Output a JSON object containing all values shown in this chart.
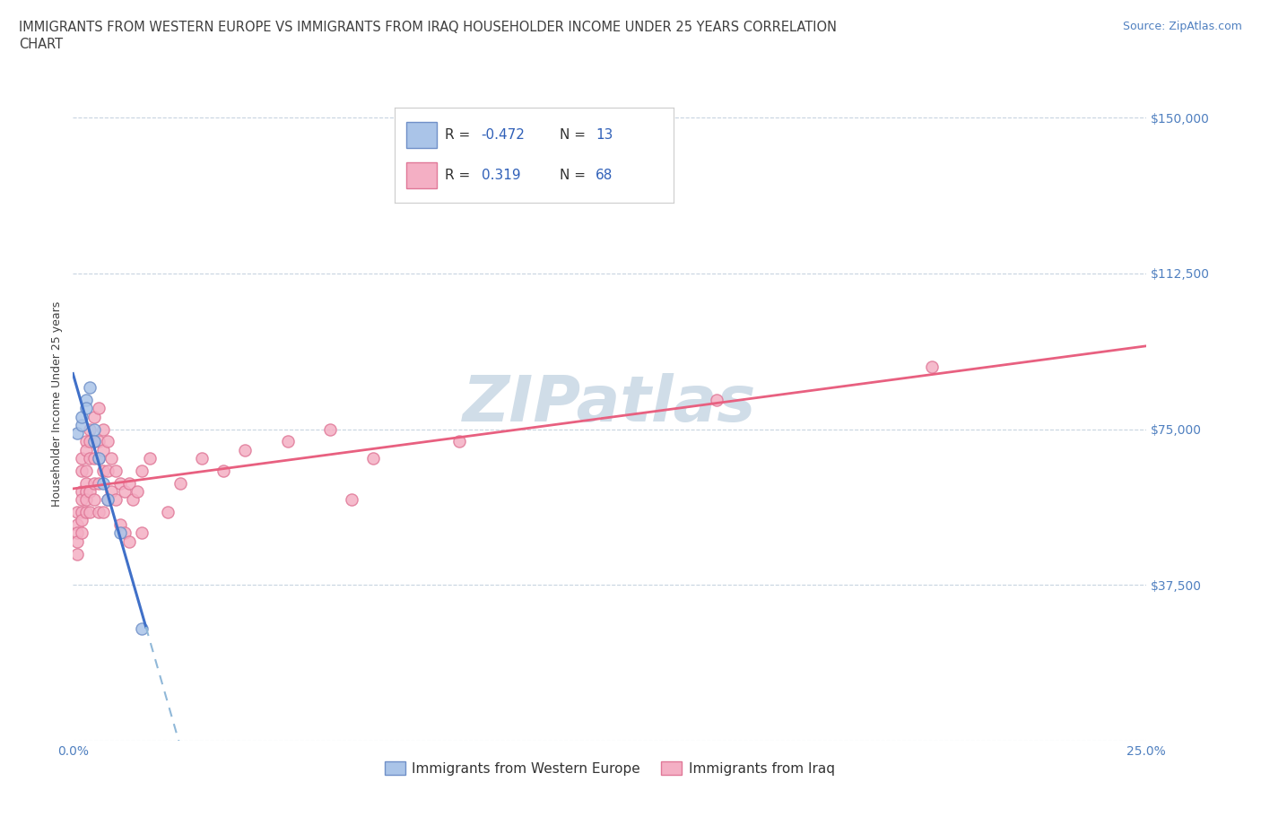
{
  "title_line1": "IMMIGRANTS FROM WESTERN EUROPE VS IMMIGRANTS FROM IRAQ HOUSEHOLDER INCOME UNDER 25 YEARS CORRELATION",
  "title_line2": "CHART",
  "source_text": "Source: ZipAtlas.com",
  "ylabel": "Householder Income Under 25 years",
  "watermark": "ZIPatlas",
  "xlim": [
    0.0,
    0.25
  ],
  "ylim": [
    0,
    162000
  ],
  "yticks": [
    0,
    37500,
    75000,
    112500,
    150000
  ],
  "ytick_labels": [
    "",
    "$37,500",
    "$75,000",
    "$112,500",
    "$150,000"
  ],
  "xticks": [
    0.0,
    0.05,
    0.1,
    0.15,
    0.2,
    0.25
  ],
  "xtick_labels": [
    "0.0%",
    "",
    "",
    "",
    "",
    "25.0%"
  ],
  "grid_color": "#c8d4e0",
  "background_color": "#ffffff",
  "western_europe_color": "#aac4e8",
  "iraq_color": "#f4afc4",
  "western_europe_edge": "#7090c8",
  "iraq_edge": "#e07898",
  "trend_we_color": "#4070c8",
  "trend_iraq_color": "#e86080",
  "trend_dash_color": "#90b8d8",
  "legend_R_color": "#3060b8",
  "title_color": "#404040",
  "tick_color": "#5080c0",
  "watermark_color": "#d0dde8",
  "R_western_europe": -0.472,
  "N_western_europe": 13,
  "R_iraq": 0.319,
  "N_iraq": 68,
  "legend_label_western": "Immigrants from Western Europe",
  "legend_label_iraq": "Immigrants from Iraq",
  "we_x": [
    0.001,
    0.002,
    0.002,
    0.003,
    0.003,
    0.004,
    0.005,
    0.005,
    0.006,
    0.007,
    0.008,
    0.011,
    0.016
  ],
  "we_y": [
    74000,
    76000,
    78000,
    82000,
    80000,
    85000,
    75000,
    72000,
    68000,
    62000,
    58000,
    50000,
    27000
  ],
  "iraq_x": [
    0.001,
    0.001,
    0.001,
    0.001,
    0.001,
    0.002,
    0.002,
    0.002,
    0.002,
    0.002,
    0.002,
    0.002,
    0.003,
    0.003,
    0.003,
    0.003,
    0.003,
    0.003,
    0.003,
    0.004,
    0.004,
    0.004,
    0.004,
    0.004,
    0.005,
    0.005,
    0.005,
    0.005,
    0.005,
    0.006,
    0.006,
    0.006,
    0.006,
    0.006,
    0.007,
    0.007,
    0.007,
    0.007,
    0.008,
    0.008,
    0.008,
    0.009,
    0.009,
    0.01,
    0.01,
    0.011,
    0.011,
    0.012,
    0.012,
    0.013,
    0.013,
    0.014,
    0.015,
    0.016,
    0.016,
    0.018,
    0.022,
    0.025,
    0.03,
    0.035,
    0.04,
    0.05,
    0.06,
    0.065,
    0.07,
    0.09,
    0.15,
    0.2
  ],
  "iraq_y": [
    55000,
    52000,
    50000,
    48000,
    45000,
    68000,
    65000,
    60000,
    58000,
    55000,
    53000,
    50000,
    72000,
    70000,
    65000,
    62000,
    60000,
    58000,
    55000,
    75000,
    72000,
    68000,
    60000,
    55000,
    78000,
    72000,
    68000,
    62000,
    58000,
    80000,
    72000,
    68000,
    62000,
    55000,
    75000,
    70000,
    65000,
    55000,
    72000,
    65000,
    58000,
    68000,
    60000,
    65000,
    58000,
    62000,
    52000,
    60000,
    50000,
    62000,
    48000,
    58000,
    60000,
    65000,
    50000,
    68000,
    55000,
    62000,
    68000,
    65000,
    70000,
    72000,
    75000,
    58000,
    68000,
    72000,
    82000,
    90000
  ],
  "title_fontsize": 10.5,
  "source_fontsize": 9,
  "ylabel_fontsize": 9,
  "tick_fontsize": 10
}
